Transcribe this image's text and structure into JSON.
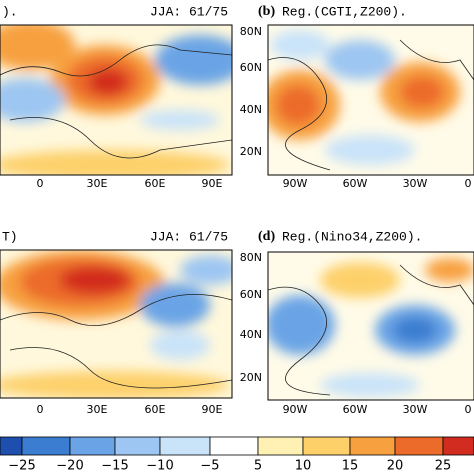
{
  "panels": [
    {
      "label": null,
      "title": ").",
      "subtitle": "JJA: 61/75",
      "xticks": [
        "0",
        "30E",
        "60E",
        "90E"
      ],
      "yticks": null
    },
    {
      "label": "(b)",
      "title": "Reg.(CGTI,Z200).",
      "subtitle": null,
      "xticks": [
        "90W",
        "60W",
        "30W",
        "0"
      ],
      "yticks": [
        "80N",
        "60N",
        "40N",
        "20N"
      ]
    },
    {
      "label": null,
      "title": "T)",
      "subtitle": "JJA: 61/75",
      "xticks": [
        "0",
        "30E",
        "60E",
        "90E"
      ],
      "yticks": null
    },
    {
      "label": "(d)",
      "title": "Reg.(Nino34,Z200).",
      "subtitle": null,
      "xticks": [
        "90W",
        "60W",
        "30W",
        "0"
      ],
      "yticks": [
        "80N",
        "60N",
        "40N",
        "20N"
      ]
    }
  ],
  "colorbar": {
    "labels": [
      "−25",
      "−20",
      "−15",
      "−10",
      "−5",
      "5",
      "10",
      "15",
      "20",
      "25"
    ],
    "colors": [
      "#1f4fae",
      "#3b7dd0",
      "#6ba4e6",
      "#9dc6f2",
      "#c9e3f9",
      "#ffffff",
      "#fff0b4",
      "#fdd06a",
      "#f7a040",
      "#ec6a2a",
      "#d22b1f"
    ]
  }
}
